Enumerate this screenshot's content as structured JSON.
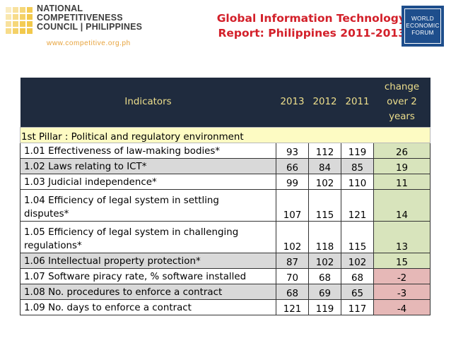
{
  "header": {
    "org_lines": [
      "NATIONAL",
      "COMPETITIVENESS",
      "COUNCIL | PHILIPPINES"
    ],
    "org_website": "www.competitive.org.ph",
    "title_lines": [
      "Global Information Technology",
      "Report: Philippines 2011-2013"
    ],
    "wef_lines": [
      "WORLD",
      "ECONOMIC",
      "FORUM"
    ]
  },
  "table": {
    "headers": {
      "indicators": "Indicators",
      "y2013": "2013",
      "y2012": "2012",
      "y2011": "2011",
      "change_lines": [
        "change",
        "over 2",
        "years"
      ]
    },
    "pillar": "1st Pillar : Political and regulatory environment",
    "rows": [
      {
        "name_lines": [
          "1.01 Effectiveness of law-making bodies*"
        ],
        "y2013": "93",
        "y2012": "112",
        "y2011": "119",
        "change": "26"
      },
      {
        "name_lines": [
          "1.02 Laws relating to ICT*"
        ],
        "y2013": "66",
        "y2012": "84",
        "y2011": "85",
        "change": "19"
      },
      {
        "name_lines": [
          "1.03 Judicial independence*"
        ],
        "y2013": "99",
        "y2012": "102",
        "y2011": "110",
        "change": "11"
      },
      {
        "name_lines": [
          "1.04 Efficiency of legal system in settling",
          "disputes*"
        ],
        "y2013": "107",
        "y2012": "115",
        "y2011": "121",
        "change": "14"
      },
      {
        "name_lines": [
          "1.05 Efficiency of legal system in challenging",
          "regulations*"
        ],
        "y2013": "102",
        "y2012": "118",
        "y2011": "115",
        "change": "13"
      },
      {
        "name_lines": [
          "1.06 Intellectual property protection*"
        ],
        "y2013": "87",
        "y2012": "102",
        "y2011": "102",
        "change": "15"
      },
      {
        "name_lines": [
          "1.07 Software piracy rate, % software installed"
        ],
        "y2013": "70",
        "y2012": "68",
        "y2011": "68",
        "change": "-2"
      },
      {
        "name_lines": [
          "1.08 No. procedures to enforce a contract"
        ],
        "y2013": "68",
        "y2012": "69",
        "y2011": "65",
        "change": "-3"
      },
      {
        "name_lines": [
          "1.09 No. days to enforce a contract"
        ],
        "y2013": "121",
        "y2012": "119",
        "y2011": "117",
        "change": "-4"
      }
    ]
  },
  "colors": {
    "title_red": "#d3202a",
    "header_bg": "#1f2b3e",
    "header_text": "#eedf8c",
    "pillar_bg": "#fdfbc3",
    "row_gray": "#d9d9d9",
    "change_positive": "#d8e4bc",
    "change_negative": "#e6b8b7",
    "wef_blue": "#1e4e8c",
    "ncc_gold": "#f2c94c"
  }
}
